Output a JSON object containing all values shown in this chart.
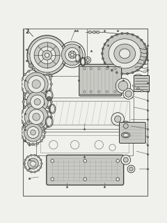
{
  "background_color": "#f0f0ec",
  "border_color": "#888888",
  "line_color": "#333333",
  "part_fill": "#e8e8e4",
  "part_mid": "#c8c8c4",
  "part_dark": "#a0a09c",
  "part_darker": "#707070",
  "fig_width": 2.4,
  "fig_height": 3.2,
  "dpi": 100
}
